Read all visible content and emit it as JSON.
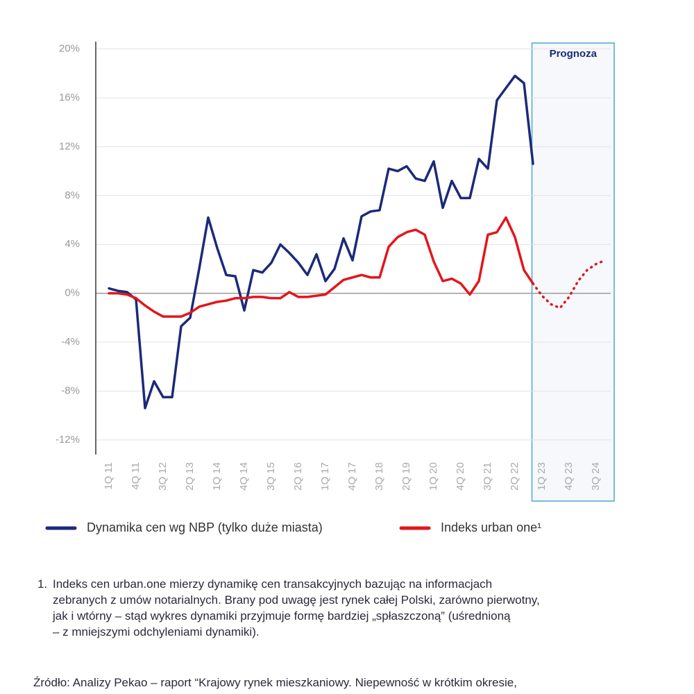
{
  "chart_data": {
    "type": "line",
    "categories": [
      "1Q 11",
      null,
      null,
      "4Q 11",
      null,
      null,
      "3Q 12",
      null,
      null,
      "2Q 13",
      null,
      null,
      "1Q 14",
      null,
      null,
      "4Q 14",
      null,
      null,
      "3Q 15",
      null,
      null,
      "2Q 16",
      null,
      null,
      "1Q 17",
      null,
      null,
      "4Q 17",
      null,
      null,
      "3Q 18",
      null,
      null,
      "2Q 19",
      null,
      null,
      "1Q 20",
      null,
      null,
      "4Q 20",
      null,
      null,
      "3Q 21",
      null,
      null,
      "2Q 22",
      null,
      null,
      "1Q 23",
      null,
      null,
      "4Q 23",
      null,
      null,
      "3Q 24",
      null
    ],
    "series": [
      {
        "name": "Dynamika cen wg NBP (tylko duże miasta)",
        "color": "#1b2a78",
        "values": [
          0.4,
          0.2,
          0.1,
          -0.5,
          -9.4,
          -7.2,
          -8.5,
          -8.5,
          -2.7,
          -2.0,
          2.0,
          6.2,
          3.7,
          1.5,
          1.4,
          -1.4,
          1.9,
          1.7,
          2.5,
          4.0,
          3.3,
          2.5,
          1.5,
          3.2,
          1.0,
          2.0,
          4.5,
          2.7,
          6.3,
          6.7,
          6.8,
          10.2,
          10.0,
          10.4,
          9.4,
          9.2,
          10.8,
          7.0,
          9.2,
          7.8,
          7.8,
          11.0,
          10.2,
          15.8,
          16.8,
          17.8,
          17.2,
          10.6,
          null,
          null,
          null,
          null,
          null,
          null,
          null,
          null
        ]
      },
      {
        "name": "Indeks urban one¹",
        "color": "#e3161b",
        "values": [
          0,
          0,
          -0.1,
          -0.4,
          -1.0,
          -1.5,
          -1.9,
          -1.9,
          -1.9,
          -1.6,
          -1.1,
          -0.9,
          -0.7,
          -0.6,
          -0.4,
          -0.4,
          -0.3,
          -0.3,
          -0.4,
          -0.4,
          0.1,
          -0.3,
          -0.3,
          -0.2,
          -0.1,
          0.5,
          1.1,
          1.3,
          1.5,
          1.3,
          1.3,
          3.8,
          4.6,
          5.0,
          5.2,
          4.8,
          2.6,
          1.0,
          1.2,
          0.8,
          -0.1,
          1.0,
          4.8,
          5.0,
          6.2,
          4.6,
          1.9,
          0.8,
          -0.2,
          -0.9,
          -1.2,
          -0.3,
          1.0,
          1.9,
          2.4,
          2.7
        ]
      }
    ],
    "forecast": {
      "label": "Prognoza",
      "from": "1Q 23"
    },
    "ylim": [
      -13.2,
      20.6
    ],
    "yticks": [
      {
        "value": -12,
        "label": "-12%"
      },
      {
        "value": -8,
        "label": "-8%"
      },
      {
        "value": -4,
        "label": "-4%"
      },
      {
        "value": 0,
        "label": "0%"
      },
      {
        "value": 4,
        "label": "4%"
      },
      {
        "value": 8,
        "label": "8%"
      },
      {
        "value": 12,
        "label": "12%"
      },
      {
        "value": 16,
        "label": "16%"
      },
      {
        "value": 20,
        "label": "20%"
      }
    ],
    "grid": true
  },
  "footnote": {
    "number": "1.",
    "lines": [
      "Indeks cen urban.one mierzy dynamikę cen transakcyjnych bazując na informacjach",
      "zebranych z umów notarialnych. Brany pod uwagę jest rynek całej Polski, zarówno pierwotny,",
      "jak i wtórny – stąd wykres dynamiki przyjmuje formę bardziej „spłaszczoną” (uśrednioną",
      "– z mniejszymi odchyleniami dynamiki)."
    ]
  },
  "source": "Źródło: Analizy Pekao – raport “Krajowy rynek mieszkaniowy. Niepewność w krótkim okresie,"
}
